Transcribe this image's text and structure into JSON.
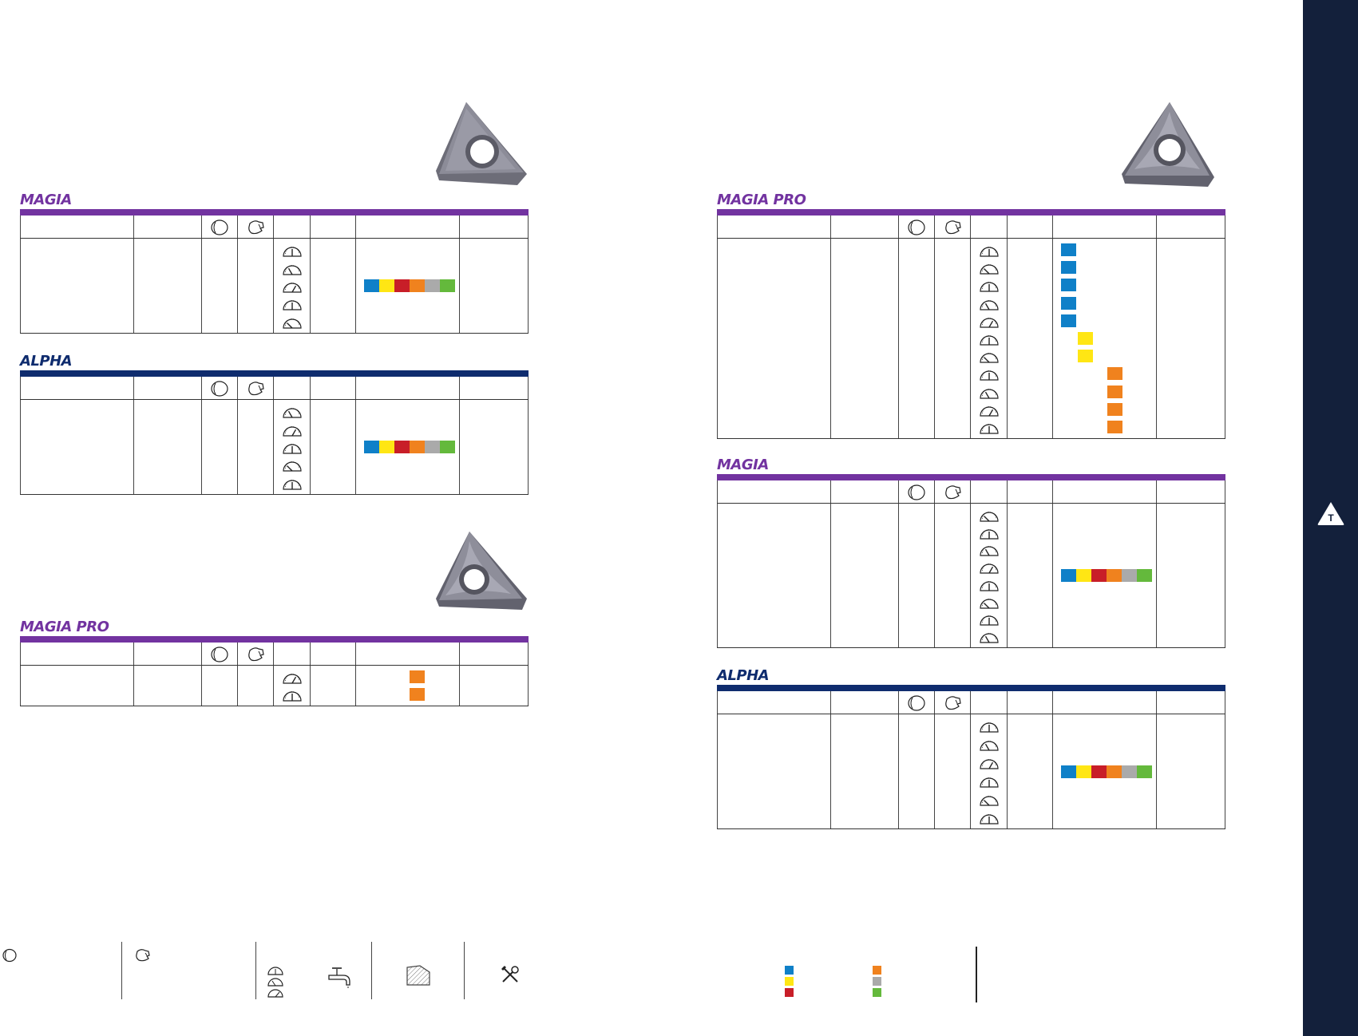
{
  "sidebar": {
    "tab_letter": "T",
    "background": "#13203b"
  },
  "colors": {
    "blue": "#0f80c8",
    "yellow": "#ffe614",
    "red": "#c81e28",
    "orange": "#f0821e",
    "gray": "#aaaaaa",
    "green": "#64b93c",
    "magia_purple": "#7233a0",
    "alpha_navy": "#0f2c6e"
  },
  "left_page": {
    "sections": [
      {
        "brand": "MAGIA",
        "rows": 5,
        "materials": [
          "blue",
          "yellow",
          "red",
          "orange",
          "gray",
          "green"
        ]
      },
      {
        "brand": "ALPHA",
        "rows": 5,
        "materials": [
          "blue",
          "yellow",
          "red",
          "orange",
          "gray",
          "green"
        ]
      },
      {
        "brand": "MAGIA PRO",
        "rows": 2,
        "materials": [
          "orange",
          "orange"
        ]
      }
    ]
  },
  "right_page": {
    "sections": [
      {
        "brand": "MAGIA PRO",
        "rows": 11,
        "materials": [
          "blue",
          "blue",
          "blue",
          "blue",
          "blue",
          "yellow",
          "yellow",
          "orange",
          "orange",
          "orange",
          "orange"
        ]
      },
      {
        "brand": "MAGIA",
        "rows": 8,
        "materials": [
          "blue",
          "yellow",
          "red",
          "orange",
          "gray",
          "green"
        ]
      },
      {
        "brand": "ALPHA",
        "rows": 6,
        "materials": [
          "blue",
          "yellow",
          "red",
          "orange",
          "gray",
          "green"
        ]
      }
    ]
  },
  "legend": {
    "icons": [
      "insert-shape-icon",
      "insert-clamp-icon",
      "gauge-icon",
      "coolant-tap-icon",
      "workpiece-icon",
      "tools-icon"
    ],
    "material_colors": [
      "blue",
      "yellow",
      "red",
      "orange",
      "gray",
      "green"
    ]
  }
}
